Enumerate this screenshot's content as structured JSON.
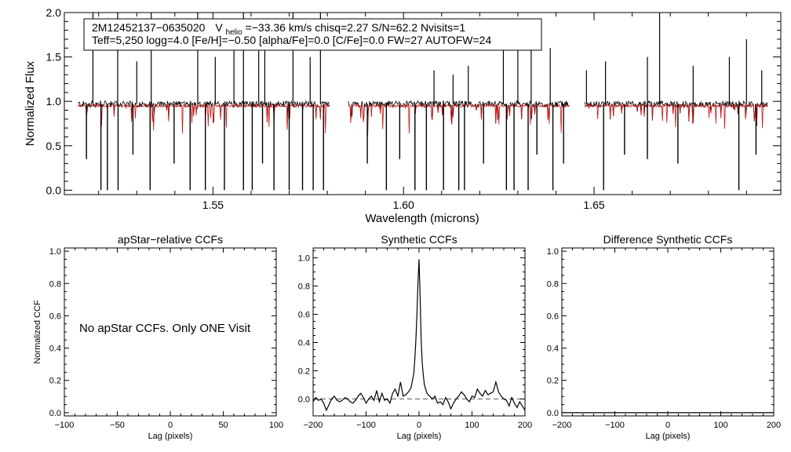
{
  "chart_data": [
    {
      "type": "line",
      "panel": "spectrum",
      "title": "",
      "info_line1": {
        "id": "2M12452137−0635020",
        "v_prefix": "V",
        "v_subscript": "helio",
        "v_rest": "=−33.36 km/s  chisq=2.27  S/N=62.2  Nvisits=1"
      },
      "info_line2": "Teff=5,250 logg=4.0 [Fe/H]=−0.50 [alpha/Fe]=0.0 [C/Fe]=0.0 FW=27 AUTOFW=24",
      "xlabel": "Wavelength (microns)",
      "ylabel": "Normalized Flux",
      "xlim": [
        1.511,
        1.699
      ],
      "ylim": [
        -0.05,
        2.0
      ],
      "xticks": [
        1.55,
        1.6,
        1.65
      ],
      "xtick_labels": [
        "1.55",
        "1.60",
        "1.65"
      ],
      "yticks": [
        0.0,
        0.5,
        1.0,
        1.5,
        2.0
      ],
      "ytick_labels": [
        "0.0",
        "0.5",
        "1.0",
        "1.5",
        "2.0"
      ],
      "chips": [
        [
          1.5145,
          1.5805
        ],
        [
          1.5855,
          1.6435
        ],
        [
          1.6475,
          1.6955
        ]
      ],
      "continuum_level": 0.97,
      "model_level": 0.95,
      "series": [
        {
          "name": "observed spectrum",
          "color": "#000000"
        },
        {
          "name": "model spectrum",
          "color": "#cc1111"
        }
      ],
      "absorption_lines": [
        [
          1.5168,
          0.35
        ],
        [
          1.5206,
          0.0
        ],
        [
          1.5223,
          0.0
        ],
        [
          1.5251,
          0.0
        ],
        [
          1.529,
          0.4
        ],
        [
          1.5335,
          0.0
        ],
        [
          1.5398,
          0.3
        ],
        [
          1.544,
          0.0
        ],
        [
          1.548,
          0.0
        ],
        [
          1.553,
          0.0
        ],
        [
          1.558,
          0.0
        ],
        [
          1.5603,
          0.0
        ],
        [
          1.563,
          0.3
        ],
        [
          1.566,
          0.0
        ],
        [
          1.57,
          0.0
        ],
        [
          1.5735,
          0.0
        ],
        [
          1.5763,
          0.0
        ],
        [
          1.579,
          0.0
        ],
        [
          1.5905,
          0.3
        ],
        [
          1.5955,
          0.0
        ],
        [
          1.599,
          0.35
        ],
        [
          1.603,
          0.0
        ],
        [
          1.606,
          0.0
        ],
        [
          1.6105,
          0.0
        ],
        [
          1.6145,
          0.0
        ],
        [
          1.616,
          0.0
        ],
        [
          1.621,
          0.3
        ],
        [
          1.627,
          0.0
        ],
        [
          1.629,
          0.0
        ],
        [
          1.6327,
          0.0
        ],
        [
          1.635,
          0.4
        ],
        [
          1.6392,
          0.0
        ],
        [
          1.642,
          0.3
        ],
        [
          1.6525,
          0.0
        ],
        [
          1.658,
          0.4
        ],
        [
          1.664,
          0.35
        ],
        [
          1.672,
          0.3
        ],
        [
          1.688,
          0.0
        ],
        [
          1.6925,
          0.4
        ]
      ],
      "emission_spikes": [
        [
          1.5185,
          2.0
        ],
        [
          1.525,
          2.0
        ],
        [
          1.53,
          1.45
        ],
        [
          1.5338,
          2.0
        ],
        [
          1.546,
          2.0
        ],
        [
          1.5506,
          1.5
        ],
        [
          1.5555,
          1.65
        ],
        [
          1.558,
          2.0
        ],
        [
          1.562,
          1.7
        ],
        [
          1.5636,
          1.65
        ],
        [
          1.571,
          2.0
        ],
        [
          1.5755,
          1.5
        ],
        [
          1.5782,
          2.0
        ],
        [
          1.608,
          1.35
        ],
        [
          1.613,
          1.3
        ],
        [
          1.617,
          1.4
        ],
        [
          1.6262,
          1.65
        ],
        [
          1.63,
          1.65
        ],
        [
          1.6335,
          1.8
        ],
        [
          1.6385,
          1.6
        ],
        [
          1.648,
          1.35
        ],
        [
          1.653,
          1.45
        ],
        [
          1.664,
          1.5
        ],
        [
          1.6672,
          2.0
        ],
        [
          1.676,
          1.4
        ],
        [
          1.6855,
          1.5
        ],
        [
          1.69,
          1.7
        ],
        [
          1.694,
          1.35
        ]
      ]
    },
    {
      "type": "line",
      "panel": "apstar-ccf",
      "title": "apStar−relative CCFs",
      "xlabel": "Lag (pixels)",
      "ylabel": "Normalized CCF",
      "xlim": [
        -100,
        100
      ],
      "ylim": [
        -0.02,
        1.02
      ],
      "xticks": [
        -100,
        -50,
        0,
        50,
        100
      ],
      "xtick_labels": [
        "−100",
        "−50",
        "0",
        "50",
        "100"
      ],
      "yticks": [
        0.0,
        0.2,
        0.4,
        0.6,
        0.8,
        1.0
      ],
      "ytick_labels": [
        "0.0",
        "0.2",
        "0.4",
        "0.6",
        "0.8",
        "1.0"
      ],
      "annotation": "No apStar CCFs.  Only ONE Visit",
      "series": []
    },
    {
      "type": "line",
      "panel": "synthetic-ccf",
      "title": "Synthetic CCFs",
      "xlabel": "Lag (pixels)",
      "ylabel": "",
      "xlim": [
        -200,
        200
      ],
      "ylim": [
        -0.12,
        1.07
      ],
      "xticks": [
        -200,
        -100,
        0,
        100,
        200
      ],
      "xtick_labels": [
        "−200",
        "−100",
        "0",
        "100",
        "200"
      ],
      "yticks": [
        0.0,
        0.2,
        0.4,
        0.6,
        0.8,
        1.0
      ],
      "ytick_labels": [
        "0.0",
        "0.2",
        "0.4",
        "0.6",
        "0.8",
        "1.0"
      ],
      "reference_line": 0.0,
      "series": [
        {
          "name": "CCF",
          "x": [
            -200,
            -195,
            -190,
            -185,
            -180,
            -175,
            -170,
            -165,
            -160,
            -155,
            -150,
            -145,
            -140,
            -135,
            -130,
            -125,
            -120,
            -115,
            -110,
            -105,
            -100,
            -95,
            -90,
            -85,
            -80,
            -75,
            -70,
            -65,
            -60,
            -55,
            -50,
            -45,
            -40,
            -35,
            -30,
            -25,
            -20,
            -15,
            -10,
            -8,
            -6,
            -4,
            -2,
            0,
            2,
            4,
            6,
            8,
            10,
            15,
            20,
            25,
            30,
            35,
            40,
            45,
            50,
            55,
            60,
            65,
            70,
            75,
            80,
            85,
            90,
            95,
            100,
            105,
            110,
            115,
            120,
            125,
            130,
            135,
            140,
            145,
            150,
            155,
            160,
            165,
            170,
            175,
            180,
            185,
            190,
            195,
            200
          ],
          "y": [
            -0.02,
            0.01,
            -0.01,
            0.0,
            -0.03,
            -0.08,
            -0.04,
            0.0,
            0.02,
            -0.01,
            -0.02,
            -0.01,
            0.01,
            0.0,
            -0.02,
            -0.03,
            -0.01,
            0.02,
            0.04,
            0.01,
            -0.03,
            0.0,
            0.02,
            -0.01,
            0.06,
            -0.02,
            0.04,
            -0.01,
            0.0,
            -0.03,
            0.04,
            0.07,
            0.02,
            0.12,
            0.02,
            0.03,
            0.05,
            0.08,
            0.18,
            0.28,
            0.42,
            0.6,
            0.82,
            0.99,
            0.72,
            0.42,
            0.26,
            0.17,
            0.1,
            0.04,
            0.02,
            0.0,
            0.02,
            -0.03,
            -0.02,
            -0.04,
            0.01,
            -0.02,
            -0.07,
            -0.03,
            0.0,
            0.02,
            0.05,
            0.03,
            0.0,
            -0.02,
            0.02,
            0.01,
            0.07,
            0.04,
            0.02,
            0.06,
            0.03,
            0.04,
            0.05,
            0.12,
            0.05,
            0.02,
            0.0,
            -0.01,
            -0.05,
            0.01,
            -0.03,
            -0.06,
            -0.02,
            -0.05,
            -0.08
          ]
        }
      ]
    },
    {
      "type": "line",
      "panel": "difference-ccf",
      "title": "Difference Synthetic CCFs",
      "xlabel": "Lag (pixels)",
      "ylabel": "",
      "xlim": [
        -200,
        200
      ],
      "ylim": [
        -0.02,
        1.02
      ],
      "xticks": [
        -200,
        -100,
        0,
        100,
        200
      ],
      "xtick_labels": [
        "−200",
        "−100",
        "0",
        "100",
        "200"
      ],
      "yticks": [
        0.0,
        0.2,
        0.4,
        0.6,
        0.8,
        1.0
      ],
      "ytick_labels": [
        "0.0",
        "0.2",
        "0.4",
        "0.6",
        "0.8",
        "1.0"
      ],
      "series": [
        {
          "name": "difference CCF",
          "x": [
            -200,
            200
          ],
          "y": [
            0.0,
            0.0
          ]
        }
      ]
    }
  ]
}
